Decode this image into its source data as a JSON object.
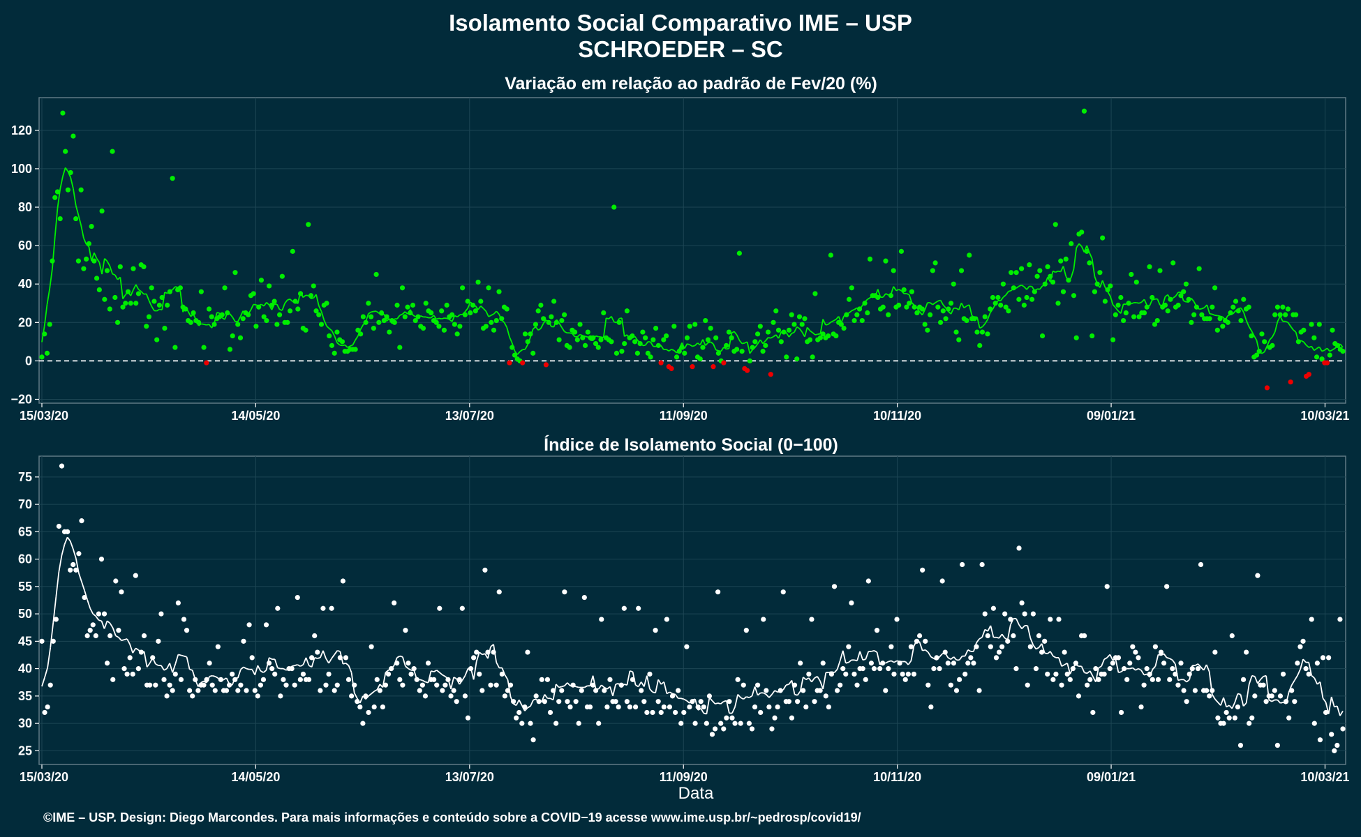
{
  "title_line1": "Isolamento Social Comparativo IME – USP",
  "title_line2": "SCHROEDER – SC",
  "footer": "©IME – USP. Design: Diego Marcondes. Para mais informações e conteúdo sobre a COVID−19 acesse www.ime.usp.br/~pedrosp/covid19/",
  "colors": {
    "background": "#022b3a",
    "positive": "#00ee00",
    "negative": "#ee0000",
    "index": "#ffffff",
    "grid": "#1d4654"
  },
  "chart_data": [
    {
      "type": "scatter",
      "title": "Variação em relação ao padrão de Fev/20 (%)",
      "xlabel": "",
      "ylabel": "",
      "x_start": "15/03/20",
      "x_end": "15/03/21",
      "x_tick_labels": [
        "15/03/20",
        "14/05/20",
        "13/07/20",
        "11/09/20",
        "10/11/20",
        "09/01/21",
        "10/03/21"
      ],
      "y_ticks": [
        -20,
        0,
        20,
        40,
        60,
        80,
        100,
        120
      ],
      "ylim": [
        -22,
        137
      ],
      "reference_line": 0,
      "grid": true,
      "series": [
        {
          "values": [
            2,
            14,
            4,
            19,
            52,
            85,
            88,
            74,
            129,
            109,
            89,
            98,
            117,
            74,
            52,
            89,
            48,
            53,
            61,
            70,
            52,
            43,
            37,
            78,
            32,
            47,
            27,
            109,
            33,
            20,
            49,
            28,
            30,
            36,
            30,
            48,
            30,
            35,
            50,
            49,
            18,
            23,
            38,
            31,
            11,
            29,
            33,
            17,
            29,
            36,
            95,
            7,
            37,
            38,
            28,
            27,
            21,
            20,
            25,
            21,
            20,
            36,
            7,
            -1,
            27,
            23,
            19,
            22,
            23,
            24,
            38,
            25,
            6,
            13,
            46,
            19,
            12,
            22,
            25,
            24,
            34,
            35,
            18,
            28,
            42,
            23,
            21,
            39,
            29,
            31,
            19,
            24,
            44,
            20,
            20,
            26,
            57,
            31,
            27,
            35,
            17,
            16,
            71,
            34,
            39,
            26,
            24,
            19,
            29,
            30,
            13,
            8,
            4,
            15,
            11,
            10,
            5,
            5,
            6,
            6,
            6,
            16,
            14,
            23,
            20,
            30,
            23,
            17,
            45,
            20,
            25,
            21,
            23,
            15,
            21,
            20,
            29,
            7,
            38,
            23,
            28,
            25,
            29,
            21,
            23,
            18,
            17,
            30,
            26,
            25,
            21,
            20,
            18,
            26,
            16,
            29,
            23,
            24,
            19,
            14,
            18,
            38,
            24,
            31,
            25,
            29,
            26,
            41,
            31,
            17,
            18,
            38,
            20,
            16,
            21,
            36,
            22,
            28,
            27,
            -1,
            7,
            3,
            1,
            0,
            -1,
            14,
            10,
            14,
            4,
            19,
            26,
            29,
            22,
            -2,
            20,
            23,
            31,
            20,
            11,
            21,
            24,
            8,
            7,
            16,
            15,
            11,
            19,
            12,
            8,
            15,
            12,
            12,
            9,
            7,
            11,
            25,
            12,
            11,
            10,
            80,
            4,
            20,
            5,
            9,
            26,
            12,
            13,
            10,
            4,
            9,
            15,
            12,
            4,
            2,
            11,
            17,
            8,
            -1,
            11,
            13,
            -3,
            -4,
            18,
            2,
            5,
            7,
            4,
            12,
            18,
            -3,
            19,
            2,
            1,
            7,
            21,
            11,
            17,
            -3,
            12,
            4,
            0,
            -1,
            8,
            15,
            12,
            5,
            6,
            56,
            5,
            -4,
            -5,
            0,
            7,
            10,
            14,
            18,
            5,
            8,
            15,
            -7,
            20,
            26,
            16,
            10,
            15,
            2,
            16,
            24,
            19,
            1,
            23,
            19,
            22,
            10,
            11,
            2,
            35,
            11,
            12,
            14,
            12,
            13,
            55,
            14,
            13,
            20,
            19,
            17,
            24,
            32,
            38,
            21,
            24,
            27,
            21,
            30,
            25,
            53,
            34,
            34,
            33,
            27,
            28,
            52,
            24,
            34,
            47,
            28,
            29,
            57,
            37,
            28,
            30,
            36,
            28,
            25,
            28,
            27,
            19,
            16,
            24,
            47,
            51,
            28,
            20,
            26,
            22,
            27,
            30,
            40,
            15,
            11,
            47,
            22,
            21,
            55,
            22,
            22,
            15,
            8,
            15,
            23,
            14,
            27,
            33,
            30,
            33,
            29,
            40,
            28,
            26,
            46,
            38,
            46,
            32,
            48,
            29,
            33,
            50,
            32,
            36,
            44,
            47,
            13,
            40,
            49,
            44,
            41,
            71,
            30,
            52,
            36,
            53,
            42,
            61,
            34,
            12,
            66,
            67,
            130,
            57,
            51,
            13,
            36,
            40,
            46,
            64,
            31,
            37,
            39,
            11,
            24,
            29,
            33,
            21,
            25,
            30,
            45,
            23,
            41,
            23,
            25,
            25,
            28,
            49,
            33,
            19,
            21,
            47,
            28,
            29,
            26,
            32,
            51,
            28,
            29,
            34,
            36,
            40,
            32,
            20,
            24,
            28,
            48,
            24,
            22,
            22,
            22,
            28,
            38,
            16,
            22,
            18,
            21,
            20,
            25,
            28,
            31,
            26,
            21,
            32,
            27,
            28,
            13,
            2,
            3,
            5,
            14,
            10,
            -14,
            7,
            8,
            24,
            28,
            24,
            28,
            24,
            27,
            -11,
            24,
            24,
            10,
            15,
            16,
            -8,
            -7,
            19,
            12,
            2,
            19,
            1,
            -1,
            -1,
            3,
            16,
            9,
            8,
            6,
            5
          ]
        }
      ]
    },
    {
      "type": "scatter",
      "title": "Índice de Isolamento Social (0−100)",
      "xlabel": "Data",
      "ylabel": "",
      "x_start": "15/03/20",
      "x_end": "15/03/21",
      "x_tick_labels": [
        "15/03/20",
        "14/05/20",
        "13/07/20",
        "11/09/20",
        "10/11/20",
        "09/01/21",
        "10/03/21"
      ],
      "y_ticks": [
        25,
        30,
        35,
        40,
        45,
        50,
        55,
        60,
        65,
        70,
        75
      ],
      "ylim": [
        22.5,
        78.8
      ],
      "grid": true,
      "series": [
        {
          "values": [
            45,
            32,
            33,
            37,
            45,
            49,
            66,
            77,
            65,
            65,
            58,
            59,
            58,
            61,
            67,
            53,
            46,
            47,
            48,
            46,
            50,
            60,
            50,
            41,
            46,
            38,
            56,
            47,
            54,
            40,
            39,
            42,
            39,
            57,
            40,
            43,
            46,
            37,
            37,
            42,
            37,
            45,
            50,
            38,
            35,
            37,
            36,
            39,
            52,
            38,
            49,
            47,
            36,
            35,
            38,
            36,
            37,
            37,
            38,
            41,
            37,
            36,
            44,
            38,
            36,
            36,
            37,
            39,
            38,
            36,
            37,
            45,
            36,
            48,
            42,
            36,
            35,
            37,
            38,
            48,
            41,
            40,
            39,
            51,
            35,
            38,
            37,
            40,
            40,
            37,
            53,
            38,
            39,
            38,
            38,
            42,
            46,
            43,
            36,
            51,
            37,
            39,
            51,
            36,
            37,
            42,
            56,
            42,
            38,
            35,
            37,
            34,
            33,
            30,
            35,
            32,
            44,
            33,
            38,
            36,
            33,
            37,
            39,
            40,
            52,
            41,
            38,
            37,
            47,
            41,
            39,
            40,
            38,
            36,
            37,
            35,
            41,
            38,
            38,
            37,
            51,
            36,
            37,
            38,
            35,
            36,
            34,
            38,
            51,
            35,
            31,
            40,
            42,
            43,
            39,
            36,
            58,
            43,
            37,
            43,
            37,
            54,
            39,
            35,
            36,
            37,
            34,
            31,
            32,
            30,
            33,
            43,
            30,
            27,
            35,
            34,
            38,
            34,
            38,
            32,
            36,
            30,
            34,
            36,
            54,
            34,
            33,
            37,
            34,
            30,
            36,
            53,
            33,
            33,
            37,
            36,
            30,
            49,
            36,
            33,
            38,
            34,
            34,
            33,
            37,
            51,
            34,
            33,
            38,
            33,
            51,
            36,
            34,
            32,
            39,
            32,
            47,
            34,
            32,
            33,
            49,
            33,
            35,
            32,
            36,
            30,
            32,
            44,
            33,
            34,
            30,
            33,
            34,
            33,
            30,
            35,
            28,
            29,
            54,
            30,
            29,
            31,
            34,
            31,
            30,
            38,
            30,
            37,
            47,
            30,
            29,
            33,
            37,
            32,
            49,
            36,
            33,
            29,
            31,
            33,
            36,
            54,
            34,
            34,
            31,
            37,
            34,
            41,
            36,
            33,
            39,
            49,
            34,
            36,
            36,
            41,
            35,
            33,
            39,
            55,
            36,
            37,
            40,
            39,
            44,
            52,
            39,
            37,
            40,
            40,
            38,
            56,
            41,
            40,
            47,
            40,
            41,
            36,
            40,
            44,
            39,
            49,
            41,
            39,
            38,
            39,
            44,
            39,
            45,
            46,
            58,
            45,
            37,
            33,
            40,
            42,
            40,
            56,
            43,
            41,
            37,
            41,
            36,
            38,
            59,
            39,
            41,
            42,
            41,
            44,
            36,
            59,
            50,
            46,
            44,
            51,
            42,
            43,
            44,
            50,
            45,
            49,
            46,
            40,
            62,
            52,
            50,
            37,
            44,
            50,
            40,
            46,
            43,
            45,
            39,
            49,
            38,
            39,
            49,
            37,
            43,
            39,
            38,
            40,
            41,
            35,
            46,
            46,
            37,
            38,
            32,
            40,
            38,
            39,
            39,
            55,
            40,
            41,
            42,
            42,
            32,
            40,
            38,
            41,
            44,
            43,
            42,
            33,
            37,
            40,
            39,
            38,
            44,
            38,
            43,
            41,
            55,
            38,
            40,
            39,
            37,
            41,
            36,
            34,
            39,
            40,
            36,
            40,
            59,
            36,
            36,
            35,
            36,
            43,
            31,
            30,
            30,
            32,
            31,
            46,
            31,
            33,
            26,
            38,
            43,
            30,
            31,
            35,
            57,
            37,
            37,
            34,
            35,
            35,
            36,
            26,
            35,
            39,
            34,
            31,
            36,
            34,
            41,
            44,
            45,
            40,
            39,
            49,
            30,
            41,
            27,
            42,
            32,
            42,
            28,
            25,
            26,
            49,
            29
          ]
        }
      ]
    }
  ]
}
